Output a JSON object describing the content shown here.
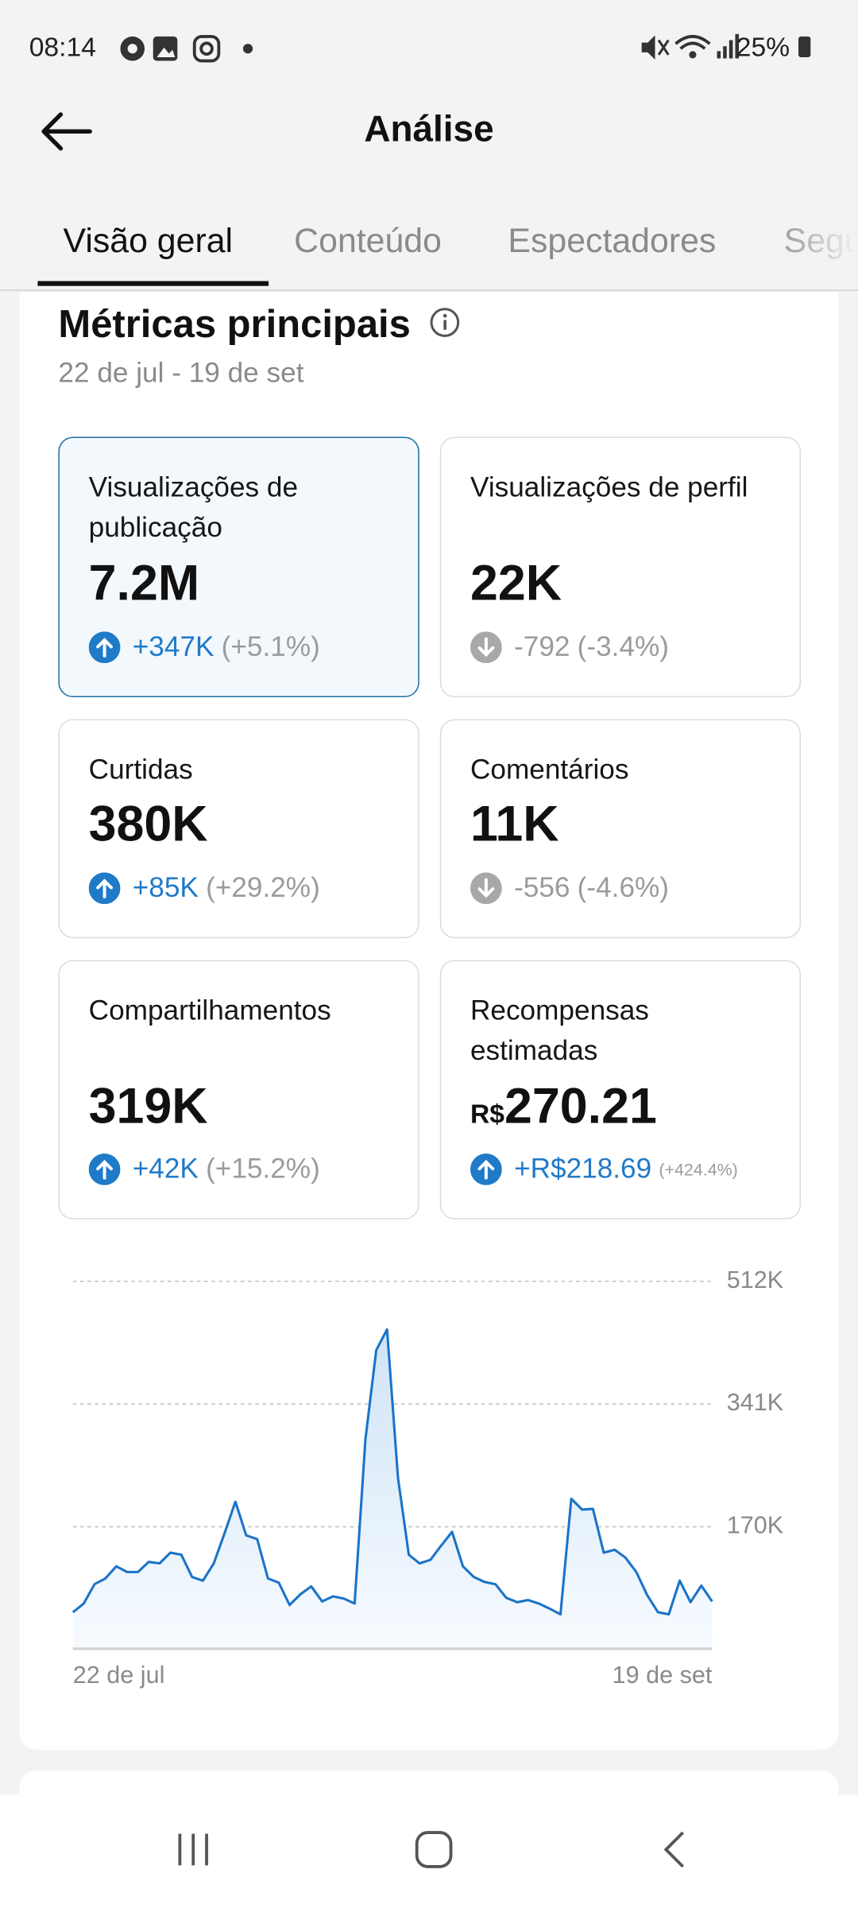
{
  "status_bar": {
    "time": "08:14",
    "battery": "25%"
  },
  "header": {
    "title": "Análise"
  },
  "tabs": [
    "Visão geral",
    "Conteúdo",
    "Espectadores",
    "Segu"
  ],
  "section": {
    "title": "Métricas principais",
    "date_range": "22 de jul - 19 de set"
  },
  "cards": [
    {
      "label": "Visualizações de publicação",
      "value": "7.2M",
      "change": "+347K",
      "change_pct": "(+5.1%)",
      "trend": "up",
      "selected": true
    },
    {
      "label": "Visualizações de perfil",
      "value": "22K",
      "change": "-792",
      "change_pct": "(-3.4%)",
      "trend": "down",
      "selected": false
    },
    {
      "label": "Curtidas",
      "value": "380K",
      "change": "+85K",
      "change_pct": "(+29.2%)",
      "trend": "up",
      "selected": false
    },
    {
      "label": "Comentários",
      "value": "11K",
      "change": "-556",
      "change_pct": "(-4.6%)",
      "trend": "down",
      "selected": false
    },
    {
      "label": "Compartilhamentos",
      "value": "319K",
      "change": "+42K",
      "change_pct": "(+15.2%)",
      "trend": "up",
      "selected": false
    },
    {
      "label": "Recompensas estimadas",
      "currency": "R$",
      "value": "270.21",
      "change": "+R$218.69",
      "change_pct": "(+424.4%)",
      "trend": "up",
      "selected": false
    }
  ],
  "chart": {
    "type": "line",
    "color": "#1a73c8",
    "categories": [
      "22 de jul",
      null,
      null,
      null,
      null,
      null,
      null,
      null,
      null,
      null,
      null,
      null,
      null,
      null,
      null,
      null,
      null,
      null,
      null,
      null,
      null,
      null,
      null,
      null,
      null,
      null,
      null,
      null,
      null,
      null,
      null,
      null,
      null,
      null,
      null,
      null,
      null,
      null,
      null,
      null,
      null,
      null,
      null,
      null,
      null,
      null,
      null,
      null,
      null,
      null,
      null,
      null,
      null,
      null,
      null,
      null,
      null,
      null,
      null,
      "19 de set"
    ],
    "values": [
      51000,
      63000,
      90000,
      98000,
      115000,
      107000,
      107000,
      121000,
      119000,
      134000,
      131000,
      100000,
      95000,
      119000,
      161000,
      205000,
      158000,
      153000,
      98000,
      92000,
      61000,
      76000,
      87000,
      66000,
      73000,
      70000,
      63000,
      292000,
      416000,
      445000,
      238000,
      131000,
      119000,
      124000,
      144000,
      163000,
      115000,
      100000,
      93000,
      90000,
      71000,
      65000,
      68000,
      63000,
      56000,
      48000,
      209000,
      194000,
      195000,
      134000,
      138000,
      127000,
      107000,
      75000,
      51000,
      48000,
      95000,
      65000,
      88000,
      66000
    ],
    "ylim": [
      0,
      512000
    ],
    "yticks": [
      {
        "value": 170000,
        "label": "170K"
      },
      {
        "value": 341000,
        "label": "341K"
      },
      {
        "value": 512000,
        "label": "512K"
      }
    ],
    "grid": true
  }
}
